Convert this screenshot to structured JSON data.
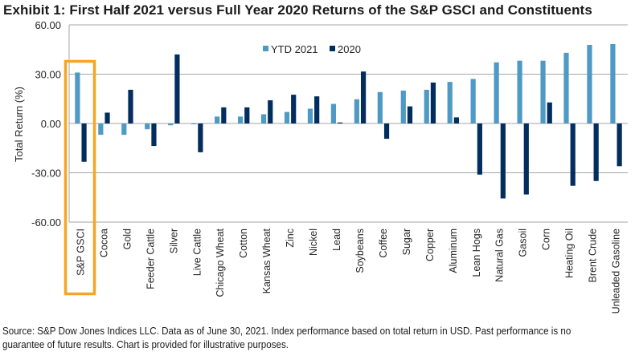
{
  "title": "Exhibit 1: First Half 2021 versus Full Year 2020 Returns of the S&P GSCI and Constituents",
  "footer": "Source: S&P Dow Jones Indices LLC. Data as of June 30, 2021. Index performance based on total return in USD. Past performance is no guarantee of future results. Chart is provided for illustrative purposes.",
  "colors": {
    "ytd_2021": "#4f9ac4",
    "y2020": "#022d5e",
    "highlight": "#f5a623",
    "gridline": "#a6a6a6"
  },
  "chart_data": {
    "type": "bar",
    "title": "Exhibit 1: First Half 2021 versus Full Year 2020 Returns of the S&P GSCI and Constituents",
    "xlabel": "",
    "ylabel": "Total Return (%)",
    "ylim": [
      -60,
      60
    ],
    "yticks": [
      "60.00",
      "30.00",
      "0.00",
      "-30.00",
      "-60.00"
    ],
    "ytick_values": [
      60,
      30,
      0,
      -30,
      -60
    ],
    "grid": true,
    "legend_position": "top-center",
    "highlighted_category": "S&P GSCI",
    "categories": [
      "S&P GSCI",
      "Cocoa",
      "Gold",
      "Feeder Cattle",
      "Silver",
      "Live Cattle",
      "Chicago Wheat",
      "Cotton",
      "Kansas Wheat",
      "Zinc",
      "Nickel",
      "Lead",
      "Soybeans",
      "Coffee",
      "Sugar",
      "Copper",
      "Aluminum",
      "Lean Hogs",
      "Natural Gas",
      "Gasoil",
      "Corn",
      "Heating Oil",
      "Brent Crude",
      "Unleaded Gasoline"
    ],
    "series": [
      {
        "name": "YTD 2021",
        "values": [
          31.0,
          -6.9,
          -6.9,
          -3.5,
          -1.1,
          -0.5,
          4.2,
          4.2,
          5.6,
          7.0,
          9.0,
          11.9,
          14.7,
          19.1,
          20.0,
          20.5,
          25.3,
          27.1,
          37.2,
          38.2,
          38.2,
          43.0,
          47.8,
          48.3
        ]
      },
      {
        "name": "2020",
        "values": [
          -23.3,
          6.6,
          20.5,
          -13.7,
          42.0,
          -17.5,
          9.8,
          9.8,
          14.1,
          17.5,
          16.5,
          0.6,
          31.6,
          -9.3,
          10.4,
          24.9,
          3.7,
          -31.1,
          -45.6,
          -43.2,
          12.8,
          -37.9,
          -35.0,
          -26.0
        ]
      }
    ]
  }
}
